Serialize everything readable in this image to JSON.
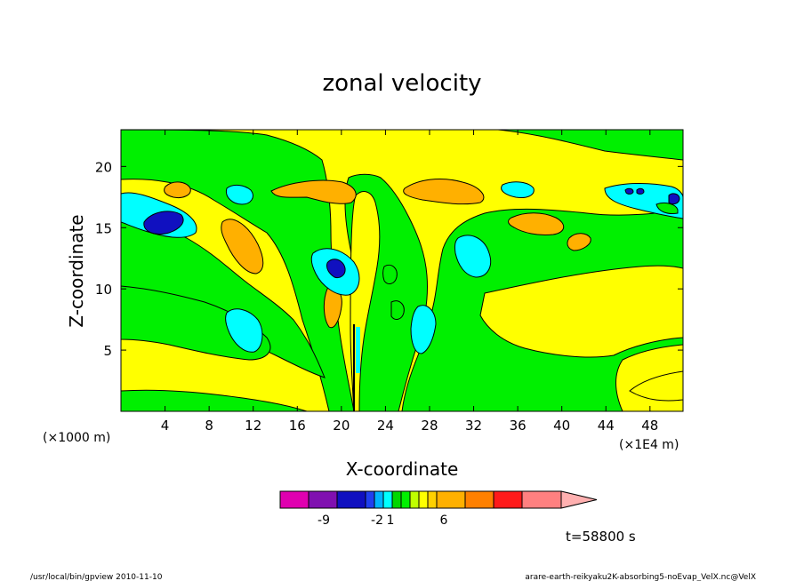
{
  "chart_data": {
    "type": "contour",
    "title": "zonal velocity",
    "xlabel": "X-coordinate",
    "ylabel": "Z-coordinate",
    "x_unit_left": "(×1000 m)",
    "x_unit_right": "(×1E4 m)",
    "xlim": [
      0,
      51
    ],
    "ylim": [
      0,
      23
    ],
    "x_ticks": [
      4,
      8,
      12,
      16,
      20,
      24,
      28,
      32,
      36,
      40,
      44,
      48
    ],
    "y_ticks": [
      5,
      10,
      15,
      20
    ],
    "colorbar": {
      "colors": [
        "#e000b0",
        "#8010b0",
        "#1010c0",
        "#2040f0",
        "#00b4ff",
        "#00ffff",
        "#00d800",
        "#00f000",
        "#c0ff00",
        "#ffff00",
        "#ffd000",
        "#ffb000",
        "#ff8000",
        "#ff1a1a",
        "#ff8080",
        "#ffb0b0"
      ],
      "labels": [
        "-9",
        "-2",
        "1",
        "6"
      ],
      "label_positions": [
        1,
        4,
        5,
        8
      ]
    },
    "palette": {
      "background": "#ffff00",
      "green": "#00f000",
      "orange": "#ffb000",
      "cyan": "#00ffff",
      "lightblue": "#00b4ff",
      "blue": "#1010c0",
      "darkgreen": "#00d800"
    }
  },
  "time_label": "t=58800 s",
  "footer": {
    "left": "/usr/local/bin/gpview  2010-11-10",
    "right": "arare-earth-reikyaku2K-absorbing5-noEvap_VelX.nc@VelX"
  }
}
